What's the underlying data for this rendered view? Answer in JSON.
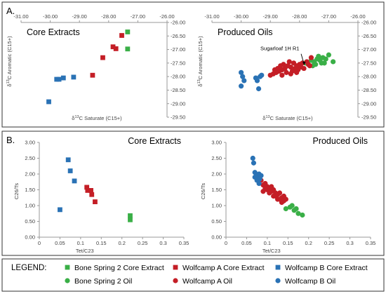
{
  "colors": {
    "bone_spring": "#3aaf47",
    "wolfcamp_a": "#c41e26",
    "wolfcamp_b": "#2a72b5",
    "axis": "#999999",
    "frame": "#333333"
  },
  "sections": {
    "a_label": "A.",
    "b_label": "B."
  },
  "legend": {
    "title": "LEGEND:",
    "items": [
      {
        "label": "Bone Spring 2 Core Extract",
        "marker": "square",
        "color": "#3aaf47"
      },
      {
        "label": "Wolfcamp A Core Extract",
        "marker": "square",
        "color": "#c41e26"
      },
      {
        "label": "Wolfcamp B Core Extract",
        "marker": "square",
        "color": "#2a72b5"
      },
      {
        "label": "Bone Spring 2 Oil",
        "marker": "circle",
        "color": "#3aaf47"
      },
      {
        "label": "Wolfcamp A Oil",
        "marker": "circle",
        "color": "#c41e26"
      },
      {
        "label": "Wolfcamp B Oil",
        "marker": "circle",
        "color": "#2a72b5"
      }
    ]
  },
  "chart_data": [
    {
      "type": "scatter",
      "title": "Core Extracts",
      "xlabel": "δ13C Saturate (C15+)",
      "ylabel": "δ13C Aromatic (C15+)",
      "xlim": [
        -31.0,
        -26.0
      ],
      "ylim": [
        -29.5,
        -26.0
      ],
      "x_axis_position": "top",
      "y_axis_position": "right",
      "y_reversed": true,
      "xticks": [
        "-31.00",
        "-30.00",
        "-29.00",
        "-28.00",
        "-27.00",
        "-26.00"
      ],
      "yticks": [
        "-26.00",
        "-26.50",
        "-27.00",
        "-27.50",
        "-28.00",
        "-28.50",
        "-29.00",
        "-29.50"
      ],
      "series": [
        {
          "name": "Bone Spring 2 Core Extract",
          "marker": "square",
          "color": "#3aaf47",
          "points": [
            [
              -27.35,
              -26.35
            ],
            [
              -27.35,
              -26.98
            ]
          ]
        },
        {
          "name": "Wolfcamp A Core Extract",
          "marker": "square",
          "color": "#c41e26",
          "points": [
            [
              -27.55,
              -26.48
            ],
            [
              -27.85,
              -26.9
            ],
            [
              -27.75,
              -26.97
            ],
            [
              -28.2,
              -27.3
            ],
            [
              -28.55,
              -27.95
            ]
          ]
        },
        {
          "name": "Wolfcamp B Core Extract",
          "marker": "square",
          "color": "#2a72b5",
          "points": [
            [
              -29.2,
              -28.02
            ],
            [
              -29.55,
              -28.05
            ],
            [
              -29.7,
              -28.1
            ],
            [
              -29.78,
              -28.1
            ],
            [
              -30.05,
              -28.93
            ]
          ]
        }
      ]
    },
    {
      "type": "scatter",
      "title": "Produced Oils",
      "xlabel": "δ13C Saturate (C15+)",
      "ylabel": "δ13C Aromatic (C15+)",
      "xlim": [
        -31.0,
        -26.0
      ],
      "ylim": [
        -29.5,
        -26.0
      ],
      "x_axis_position": "top",
      "y_axis_position": "right",
      "y_reversed": true,
      "xticks": [
        "-31.00",
        "-30.00",
        "-29.00",
        "-28.00",
        "-27.00",
        "-26.00"
      ],
      "yticks": [
        "-26.00",
        "-26.50",
        "-27.00",
        "-27.50",
        "-28.00",
        "-28.50",
        "-29.00",
        "-29.50"
      ],
      "annotation": {
        "text": "Sugarloaf 1H R1",
        "x": -27.85,
        "y": -27.6
      },
      "series": [
        {
          "name": "Bone Spring 2 Oil",
          "marker": "circle",
          "color": "#3aaf47",
          "points": [
            [
              -27.0,
              -27.2
            ],
            [
              -27.1,
              -27.35
            ],
            [
              -27.2,
              -27.3
            ],
            [
              -27.3,
              -27.4
            ],
            [
              -27.4,
              -27.35
            ],
            [
              -27.5,
              -27.45
            ],
            [
              -27.6,
              -27.4
            ],
            [
              -27.7,
              -27.55
            ],
            [
              -27.25,
              -27.5
            ],
            [
              -27.45,
              -27.55
            ],
            [
              -26.85,
              -27.45
            ],
            [
              -27.15,
              -27.5
            ],
            [
              -27.8,
              -27.5
            ],
            [
              -27.35,
              -27.25
            ],
            [
              -27.55,
              -27.6
            ]
          ]
        },
        {
          "name": "Wolfcamp A Oil",
          "marker": "circle",
          "color": "#c41e26",
          "points": [
            [
              -27.6,
              -27.3
            ],
            [
              -27.75,
              -27.45
            ],
            [
              -27.9,
              -27.5
            ],
            [
              -28.0,
              -27.55
            ],
            [
              -28.1,
              -27.6
            ],
            [
              -28.2,
              -27.5
            ],
            [
              -28.3,
              -27.65
            ],
            [
              -28.4,
              -27.6
            ],
            [
              -28.5,
              -27.7
            ],
            [
              -28.6,
              -27.75
            ],
            [
              -28.7,
              -27.8
            ],
            [
              -28.8,
              -27.85
            ],
            [
              -28.9,
              -27.9
            ],
            [
              -29.0,
              -27.95
            ],
            [
              -28.25,
              -27.8
            ],
            [
              -28.15,
              -27.7
            ],
            [
              -28.35,
              -27.45
            ],
            [
              -28.55,
              -27.55
            ],
            [
              -28.05,
              -27.75
            ],
            [
              -27.95,
              -27.65
            ],
            [
              -27.7,
              -27.55
            ],
            [
              -28.45,
              -27.85
            ],
            [
              -28.65,
              -27.6
            ],
            [
              -28.75,
              -27.7
            ],
            [
              -28.85,
              -27.75
            ],
            [
              -27.85,
              -27.7
            ],
            [
              -28.1,
              -27.85
            ],
            [
              -28.3,
              -27.9
            ],
            [
              -28.6,
              -27.95
            ],
            [
              -27.65,
              -27.6
            ]
          ]
        },
        {
          "name": "Wolfcamp B Oil",
          "marker": "circle",
          "color": "#2a72b5",
          "points": [
            [
              -30.0,
              -27.85
            ],
            [
              -29.95,
              -28.0
            ],
            [
              -29.9,
              -28.15
            ],
            [
              -30.0,
              -28.35
            ],
            [
              -29.5,
              -28.05
            ],
            [
              -29.45,
              -28.15
            ],
            [
              -29.3,
              -27.95
            ],
            [
              -29.4,
              -28.45
            ],
            [
              -29.35,
              -28.0
            ]
          ]
        }
      ]
    },
    {
      "type": "scatter",
      "title": "Core Extracts",
      "xlabel": "Tet/C23",
      "ylabel": "C26/Ts",
      "xlim": [
        0,
        0.35
      ],
      "ylim": [
        0,
        3.0
      ],
      "xticks": [
        "0",
        "0.05",
        "0.1",
        "0.15",
        "0.2",
        "0.25",
        "0.3",
        "0.35"
      ],
      "yticks": [
        "0.00",
        "0.50",
        "1.00",
        "1.50",
        "2.00",
        "2.50",
        "3.00"
      ],
      "series": [
        {
          "name": "Bone Spring 2 Core Extract",
          "marker": "square",
          "color": "#3aaf47",
          "points": [
            [
              0.22,
              0.55
            ],
            [
              0.22,
              0.68
            ]
          ]
        },
        {
          "name": "Wolfcamp A Core Extract",
          "marker": "square",
          "color": "#c41e26",
          "points": [
            [
              0.115,
              1.58
            ],
            [
              0.117,
              1.48
            ],
            [
              0.125,
              1.48
            ],
            [
              0.127,
              1.35
            ],
            [
              0.135,
              1.12
            ]
          ]
        },
        {
          "name": "Wolfcamp B Core Extract",
          "marker": "square",
          "color": "#2a72b5",
          "points": [
            [
              0.07,
              2.45
            ],
            [
              0.075,
              2.1
            ],
            [
              0.085,
              1.78
            ],
            [
              0.05,
              0.87
            ]
          ]
        }
      ]
    },
    {
      "type": "scatter",
      "title": "Produced Oils",
      "xlabel": "Tet/C23",
      "ylabel": "C26/Ts",
      "xlim": [
        0,
        0.35
      ],
      "ylim": [
        0,
        3.0
      ],
      "xticks": [
        "0",
        "0.05",
        "0.1",
        "0.15",
        "0.2",
        "0.25",
        "0.3",
        "0.35"
      ],
      "yticks": [
        "0.00",
        "0.50",
        "1.00",
        "1.50",
        "2.00",
        "2.50",
        "3.00"
      ],
      "series": [
        {
          "name": "Bone Spring 2 Oil",
          "marker": "circle",
          "color": "#3aaf47",
          "points": [
            [
              0.145,
              0.9
            ],
            [
              0.155,
              0.95
            ],
            [
              0.165,
              0.85
            ],
            [
              0.17,
              0.9
            ],
            [
              0.175,
              0.75
            ],
            [
              0.185,
              0.7
            ],
            [
              0.16,
              1.0
            ]
          ]
        },
        {
          "name": "Wolfcamp A Oil",
          "marker": "circle",
          "color": "#c41e26",
          "points": [
            [
              0.085,
              1.8
            ],
            [
              0.09,
              1.65
            ],
            [
              0.095,
              1.7
            ],
            [
              0.1,
              1.6
            ],
            [
              0.1,
              1.5
            ],
            [
              0.105,
              1.55
            ],
            [
              0.11,
              1.45
            ],
            [
              0.11,
              1.6
            ],
            [
              0.115,
              1.5
            ],
            [
              0.12,
              1.4
            ],
            [
              0.12,
              1.3
            ],
            [
              0.125,
              1.35
            ],
            [
              0.13,
              1.2
            ],
            [
              0.13,
              1.4
            ],
            [
              0.135,
              1.25
            ],
            [
              0.14,
              1.3
            ],
            [
              0.14,
              1.15
            ],
            [
              0.145,
              1.2
            ],
            [
              0.105,
              1.4
            ],
            [
              0.115,
              1.3
            ],
            [
              0.125,
              1.2
            ],
            [
              0.095,
              1.55
            ],
            [
              0.135,
              1.1
            ],
            [
              0.09,
              1.45
            ]
          ]
        },
        {
          "name": "Wolfcamp B Oil",
          "marker": "circle",
          "color": "#2a72b5",
          "points": [
            [
              0.065,
              2.5
            ],
            [
              0.067,
              2.35
            ],
            [
              0.07,
              2.05
            ],
            [
              0.075,
              1.95
            ],
            [
              0.08,
              2.0
            ],
            [
              0.085,
              1.95
            ],
            [
              0.075,
              1.8
            ],
            [
              0.08,
              1.7
            ],
            [
              0.07,
              1.9
            ],
            [
              0.082,
              1.85
            ]
          ]
        }
      ]
    }
  ]
}
